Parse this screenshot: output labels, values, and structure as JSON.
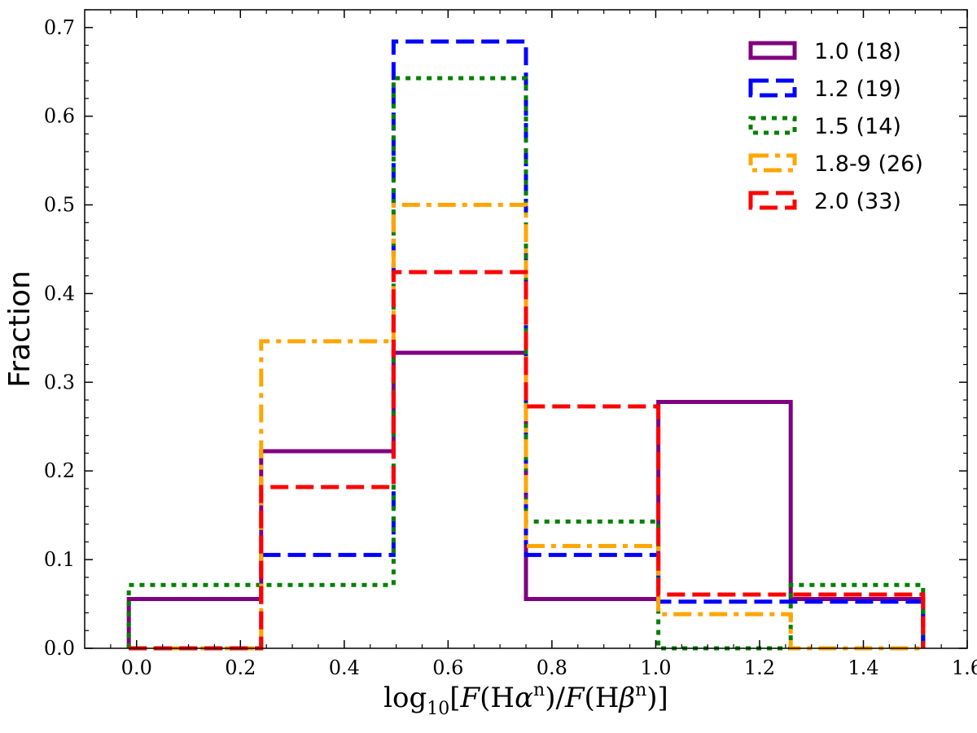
{
  "chart_data": {
    "type": "histogram-step",
    "xlabel": "log10[F(Hαn)/F(Hβn)]",
    "ylabel": "Fraction",
    "xlim": [
      -0.1,
      1.6
    ],
    "ylim": [
      0.0,
      0.72
    ],
    "xticks": [
      0.0,
      0.2,
      0.4,
      0.6,
      0.8,
      1.0,
      1.2,
      1.4,
      1.6
    ],
    "xtick_labels": [
      "0.0",
      "0.2",
      "0.4",
      "0.6",
      "0.8",
      "1.0",
      "1.2",
      "1.4",
      "1.6"
    ],
    "yticks": [
      0.0,
      0.1,
      0.2,
      0.3,
      0.4,
      0.5,
      0.6,
      0.7
    ],
    "ytick_labels": [
      "0.0",
      "0.1",
      "0.2",
      "0.3",
      "0.4",
      "0.5",
      "0.6",
      "0.7"
    ],
    "bin_edges": [
      -0.015,
      0.24,
      0.495,
      0.75,
      1.005,
      1.26,
      1.515
    ],
    "legend_position": "top-right",
    "series": [
      {
        "name": "1.0 (18)",
        "color": "#800080",
        "style": "solid",
        "values": [
          0.0556,
          0.2222,
          0.3333,
          0.0556,
          0.2778,
          0.0556
        ]
      },
      {
        "name": "1.2 (19)",
        "color": "#0000ff",
        "style": "dashed",
        "values": [
          0.0,
          0.1053,
          0.6842,
          0.1053,
          0.0526,
          0.0526
        ]
      },
      {
        "name": "1.5 (14)",
        "color": "#008000",
        "style": "dotted",
        "values": [
          0.0714,
          0.0714,
          0.6429,
          0.1429,
          0.0,
          0.0714
        ]
      },
      {
        "name": "1.8-9 (26)",
        "color": "#ffa500",
        "style": "dashdot",
        "values": [
          0.0,
          0.3462,
          0.5,
          0.1154,
          0.0385,
          0.0
        ]
      },
      {
        "name": "2.0 (33)",
        "color": "#ff0000",
        "style": "dashed",
        "values": [
          0.0,
          0.1818,
          0.4242,
          0.2727,
          0.0606,
          0.0606
        ]
      }
    ]
  }
}
